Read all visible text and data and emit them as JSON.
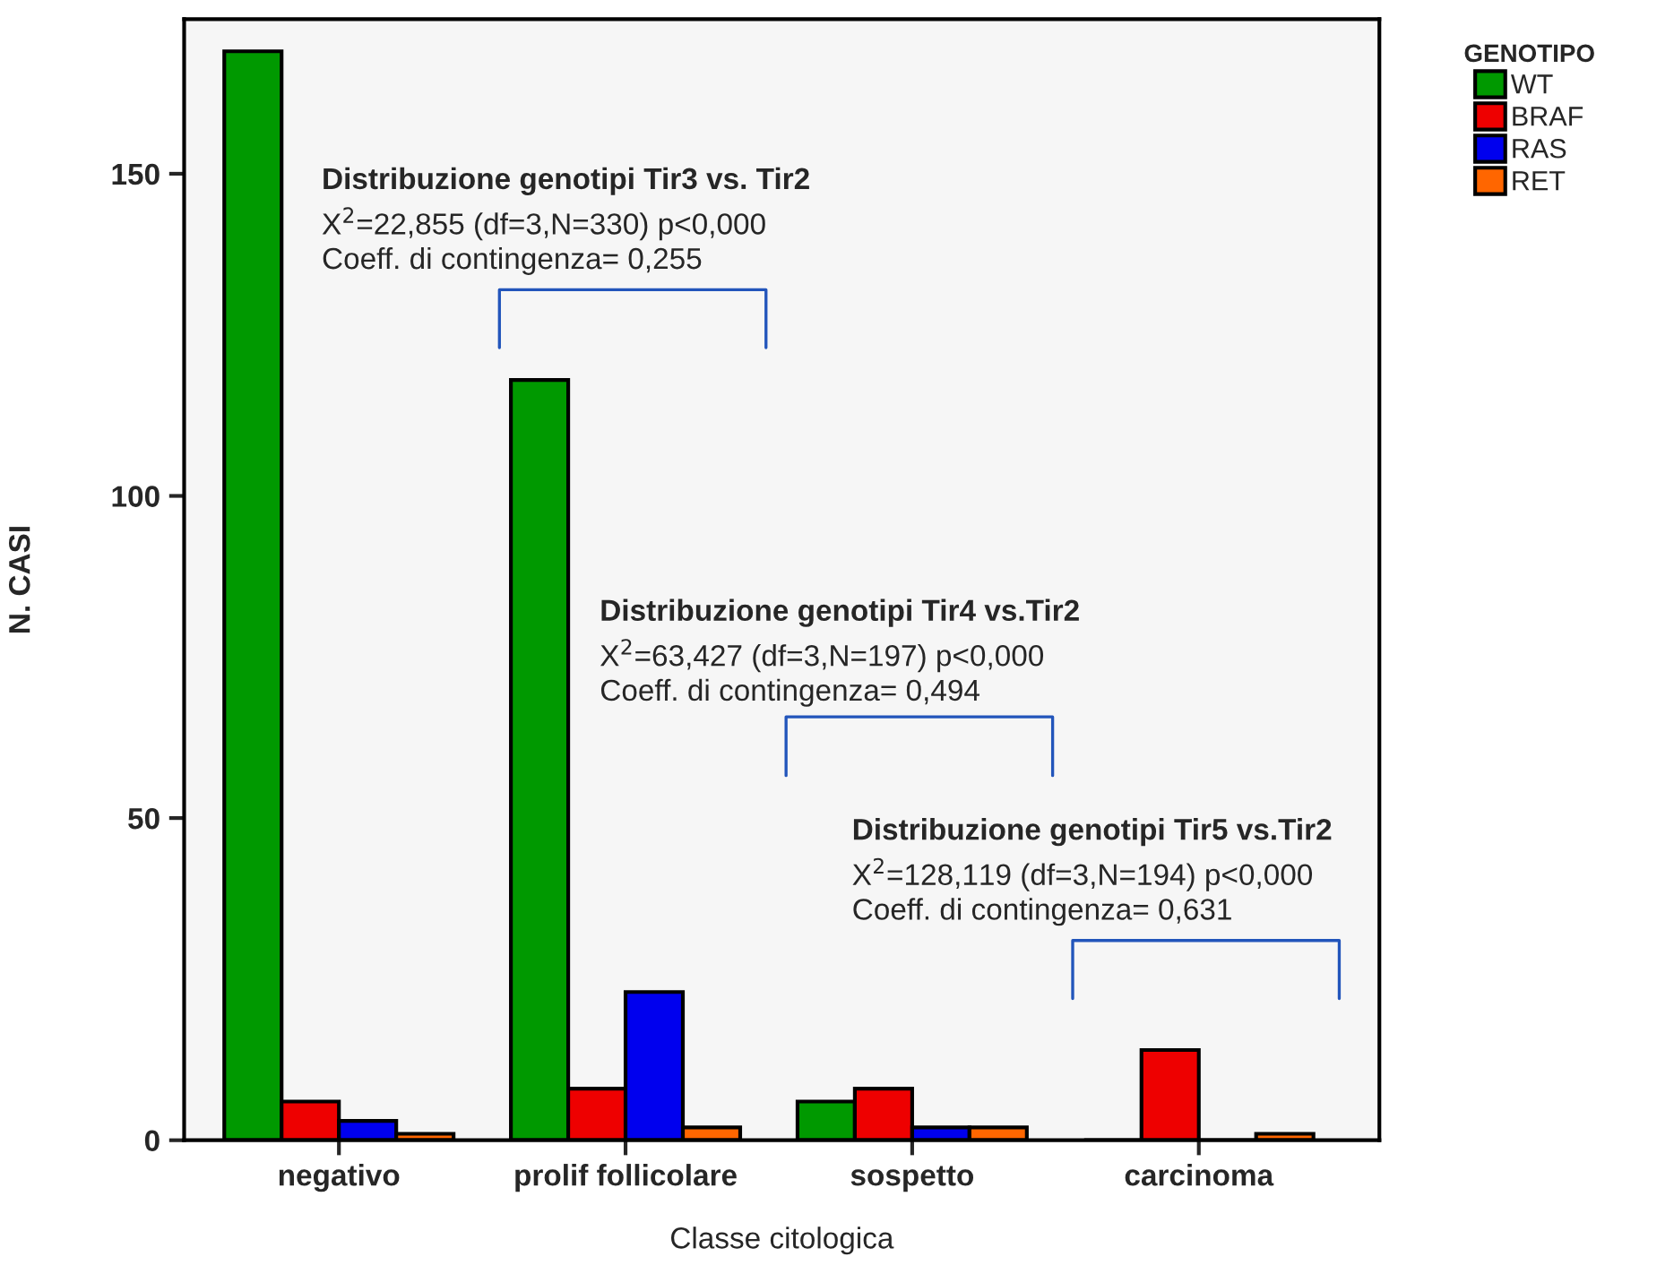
{
  "chart_data": {
    "type": "bar",
    "xlabel": "Classe citologica",
    "ylabel": "N. CASI",
    "legend_title": "GENOTIPO",
    "categories": [
      "negativo",
      "prolif follicolare",
      "sospetto",
      "carcinoma"
    ],
    "series": [
      {
        "name": "WT",
        "color": "#009900",
        "values": [
          169,
          118,
          6,
          0
        ]
      },
      {
        "name": "BRAF",
        "color": "#ee0000",
        "values": [
          6,
          8,
          8,
          14
        ]
      },
      {
        "name": "RAS",
        "color": "#0000ee",
        "values": [
          3,
          23,
          2,
          0
        ]
      },
      {
        "name": "RET",
        "color": "#ff6600",
        "values": [
          1,
          2,
          2,
          1
        ]
      }
    ],
    "ylim": [
      0,
      174
    ],
    "yticks": [
      0,
      50,
      100,
      150
    ],
    "grid": false,
    "legend": "top right",
    "annotations": [
      "Distribuzione genotipi Tir3 vs. Tir2",
      "X$^{2}$=22,855 (df=3,N=330) p<0,000",
      "Coeff. di contingenza= 0,255",
      "Distribuzione genotipi Tir4 vs.Tir2",
      "X$^{2}$=63,427 (df=3,N=197) p<0,000",
      "Coeff. di contingenza= 0,494",
      "Distribuzione genotipi Tir5 vs.Tir2",
      "X$^{2}$=128,119 (df=3,N=194) p<0,000",
      "Coeff. di contingenza= 0,631"
    ]
  }
}
